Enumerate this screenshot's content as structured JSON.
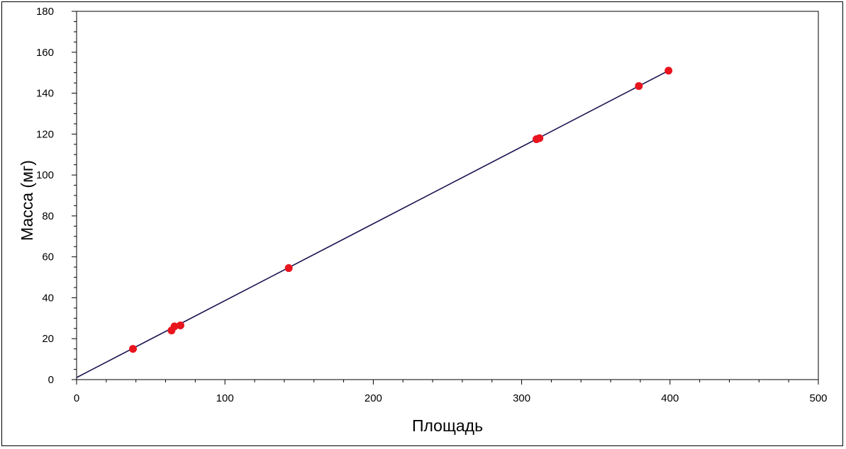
{
  "chart_data": {
    "type": "scatter",
    "title": "",
    "xlabel": "Площадь",
    "ylabel": "Масса (мг)",
    "xlim": [
      0,
      500
    ],
    "ylim": [
      0,
      180
    ],
    "x_ticks": [
      0,
      100,
      200,
      300,
      400,
      500
    ],
    "y_ticks": [
      0,
      20,
      40,
      60,
      80,
      100,
      120,
      140,
      160,
      180
    ],
    "grid": false,
    "legend": "none",
    "series": [
      {
        "kind": "points",
        "color": "#e8141e",
        "x": [
          38,
          64,
          66,
          70,
          143,
          310,
          312,
          379,
          399
        ],
        "y": [
          15,
          24,
          26,
          26.5,
          54.5,
          117.5,
          118,
          143.5,
          151
        ]
      },
      {
        "kind": "fit-line",
        "color": "#1a1450",
        "x": [
          0,
          399
        ],
        "y": [
          1,
          151
        ]
      }
    ]
  }
}
